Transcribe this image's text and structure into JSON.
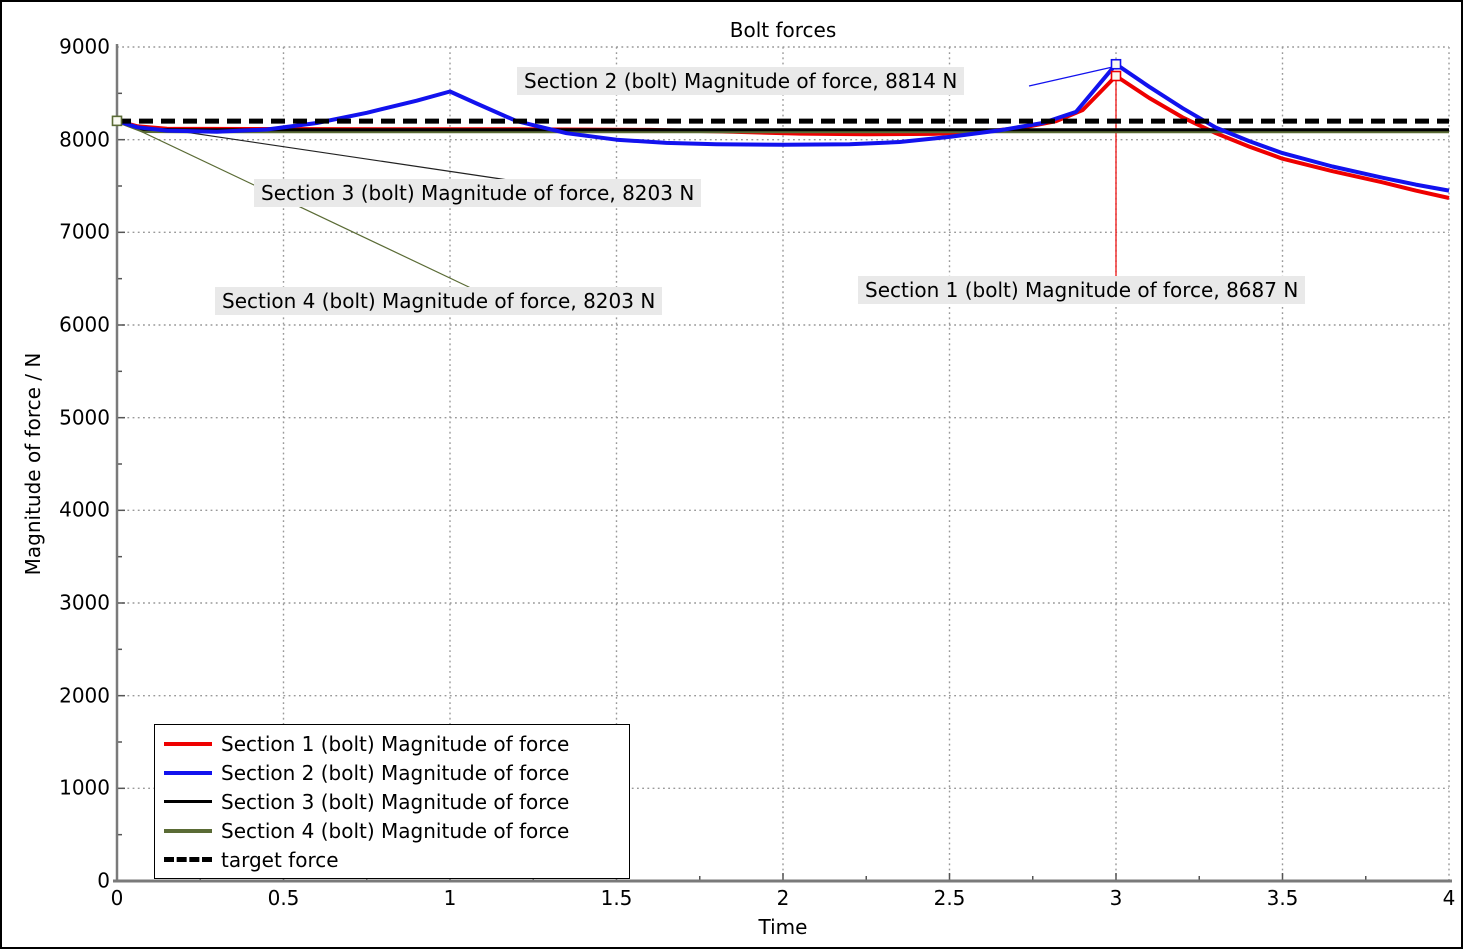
{
  "title": "Bolt forces",
  "axes": {
    "xlabel": "Time",
    "ylabel": "Magnitude of force / N",
    "x_tick_labels": [
      "0",
      "0.5",
      "1",
      "1.5",
      "2",
      "2.5",
      "3",
      "3.5",
      "4"
    ],
    "y_tick_labels": [
      "0",
      "1000",
      "2000",
      "3000",
      "4000",
      "5000",
      "6000",
      "7000",
      "8000",
      "9000"
    ]
  },
  "colors": {
    "section1": "#ee0000",
    "section2": "#1212ee",
    "section3": "#000000",
    "section4": "#5a6b35",
    "target": "#000000",
    "grid": "#999999",
    "spine": "#7a7a7a",
    "annotation_bg": "#e9e9e9"
  },
  "chart_data": {
    "type": "line",
    "title": "Bolt forces",
    "xlabel": "Time",
    "ylabel": "Magnitude of force / N",
    "xlim": [
      0,
      4
    ],
    "ylim": [
      0,
      9000
    ],
    "x_ticks": [
      0,
      0.5,
      1,
      1.5,
      2,
      2.5,
      3,
      3.5,
      4
    ],
    "y_ticks": [
      0,
      1000,
      2000,
      3000,
      4000,
      5000,
      6000,
      7000,
      8000,
      9000
    ],
    "grid": true,
    "legend_position": "lower left",
    "series": [
      {
        "name": "Section 1 (bolt) Magnitude of force",
        "color": "#ee0000",
        "style": "solid",
        "width": 4,
        "points": [
          [
            0,
            8203
          ],
          [
            0.06,
            8145
          ],
          [
            0.15,
            8118
          ],
          [
            0.4,
            8115
          ],
          [
            0.8,
            8113
          ],
          [
            1.2,
            8112
          ],
          [
            1.6,
            8105
          ],
          [
            1.85,
            8085
          ],
          [
            2.05,
            8065
          ],
          [
            2.25,
            8058
          ],
          [
            2.45,
            8062
          ],
          [
            2.6,
            8085
          ],
          [
            2.72,
            8130
          ],
          [
            2.82,
            8200
          ],
          [
            2.9,
            8320
          ],
          [
            3.0,
            8687
          ],
          [
            3.1,
            8450
          ],
          [
            3.2,
            8240
          ],
          [
            3.3,
            8070
          ],
          [
            3.4,
            7925
          ],
          [
            3.5,
            7795
          ],
          [
            3.65,
            7660
          ],
          [
            3.8,
            7540
          ],
          [
            3.9,
            7450
          ],
          [
            4.0,
            7370
          ]
        ]
      },
      {
        "name": "Section 2 (bolt) Magnitude of force",
        "color": "#1212ee",
        "style": "solid",
        "width": 4,
        "points": [
          [
            0,
            8203
          ],
          [
            0.06,
            8135
          ],
          [
            0.15,
            8098
          ],
          [
            0.3,
            8085
          ],
          [
            0.45,
            8110
          ],
          [
            0.6,
            8180
          ],
          [
            0.75,
            8290
          ],
          [
            0.9,
            8420
          ],
          [
            1.0,
            8520
          ],
          [
            1.08,
            8390
          ],
          [
            1.2,
            8200
          ],
          [
            1.35,
            8070
          ],
          [
            1.5,
            8000
          ],
          [
            1.65,
            7965
          ],
          [
            1.8,
            7950
          ],
          [
            2.0,
            7945
          ],
          [
            2.2,
            7950
          ],
          [
            2.35,
            7975
          ],
          [
            2.5,
            8030
          ],
          [
            2.65,
            8100
          ],
          [
            2.78,
            8180
          ],
          [
            2.88,
            8300
          ],
          [
            3.0,
            8814
          ],
          [
            3.1,
            8570
          ],
          [
            3.2,
            8340
          ],
          [
            3.3,
            8130
          ],
          [
            3.4,
            7985
          ],
          [
            3.5,
            7855
          ],
          [
            3.65,
            7710
          ],
          [
            3.8,
            7590
          ],
          [
            3.9,
            7515
          ],
          [
            4.0,
            7450
          ]
        ]
      },
      {
        "name": "Section 3 (bolt) Magnitude of force",
        "color": "#000000",
        "style": "solid",
        "width": 3,
        "points": [
          [
            0,
            8203
          ],
          [
            0.08,
            8112
          ],
          [
            0.2,
            8106
          ],
          [
            4,
            8106
          ]
        ]
      },
      {
        "name": "Section 4 (bolt) Magnitude of force",
        "color": "#5a6b35",
        "style": "solid",
        "width": 4,
        "points": [
          [
            0,
            8203
          ],
          [
            0.08,
            8094
          ],
          [
            0.2,
            8090
          ],
          [
            4,
            8090
          ]
        ]
      },
      {
        "name": "target force",
        "color": "#000000",
        "style": "dashed",
        "width": 5,
        "points": [
          [
            0,
            8200
          ],
          [
            4,
            8200
          ]
        ]
      }
    ],
    "markers": [
      {
        "t": 0,
        "v": 8203,
        "color": "#5a6b35"
      },
      {
        "t": 3,
        "v": 8814,
        "color": "#1212ee"
      },
      {
        "t": 3,
        "v": 8687,
        "color": "#ee0000"
      }
    ],
    "annotations": [
      {
        "id": "section2",
        "text": "Section 2 (bolt) Magnitude of force, 8814 N",
        "value_n": 8814,
        "anchor_t": 3,
        "anchor_v": 8814
      },
      {
        "id": "section3",
        "text": "Section 3 (bolt) Magnitude of force, 8203 N",
        "value_n": 8203,
        "anchor_t": 0,
        "anchor_v": 8203
      },
      {
        "id": "section4",
        "text": "Section 4 (bolt) Magnitude of force, 8203 N",
        "value_n": 8203,
        "anchor_t": 0,
        "anchor_v": 8203
      },
      {
        "id": "section1",
        "text": "Section 1 (bolt) Magnitude of force, 8687 N",
        "value_n": 8687,
        "anchor_t": 3,
        "anchor_v": 8687
      }
    ],
    "legend": {
      "entries": [
        {
          "label": "Section 1 (bolt) Magnitude of force",
          "color": "#ee0000",
          "dashed": false,
          "thickness": 4
        },
        {
          "label": "Section 2 (bolt) Magnitude of force",
          "color": "#1212ee",
          "dashed": false,
          "thickness": 4
        },
        {
          "label": "Section 3 (bolt) Magnitude of force",
          "color": "#000000",
          "dashed": false,
          "thickness": 3
        },
        {
          "label": "Section 4 (bolt) Magnitude of force",
          "color": "#5a6b35",
          "dashed": false,
          "thickness": 4
        },
        {
          "label": "target force",
          "color": "#000000",
          "dashed": true,
          "thickness": 5
        }
      ]
    }
  }
}
